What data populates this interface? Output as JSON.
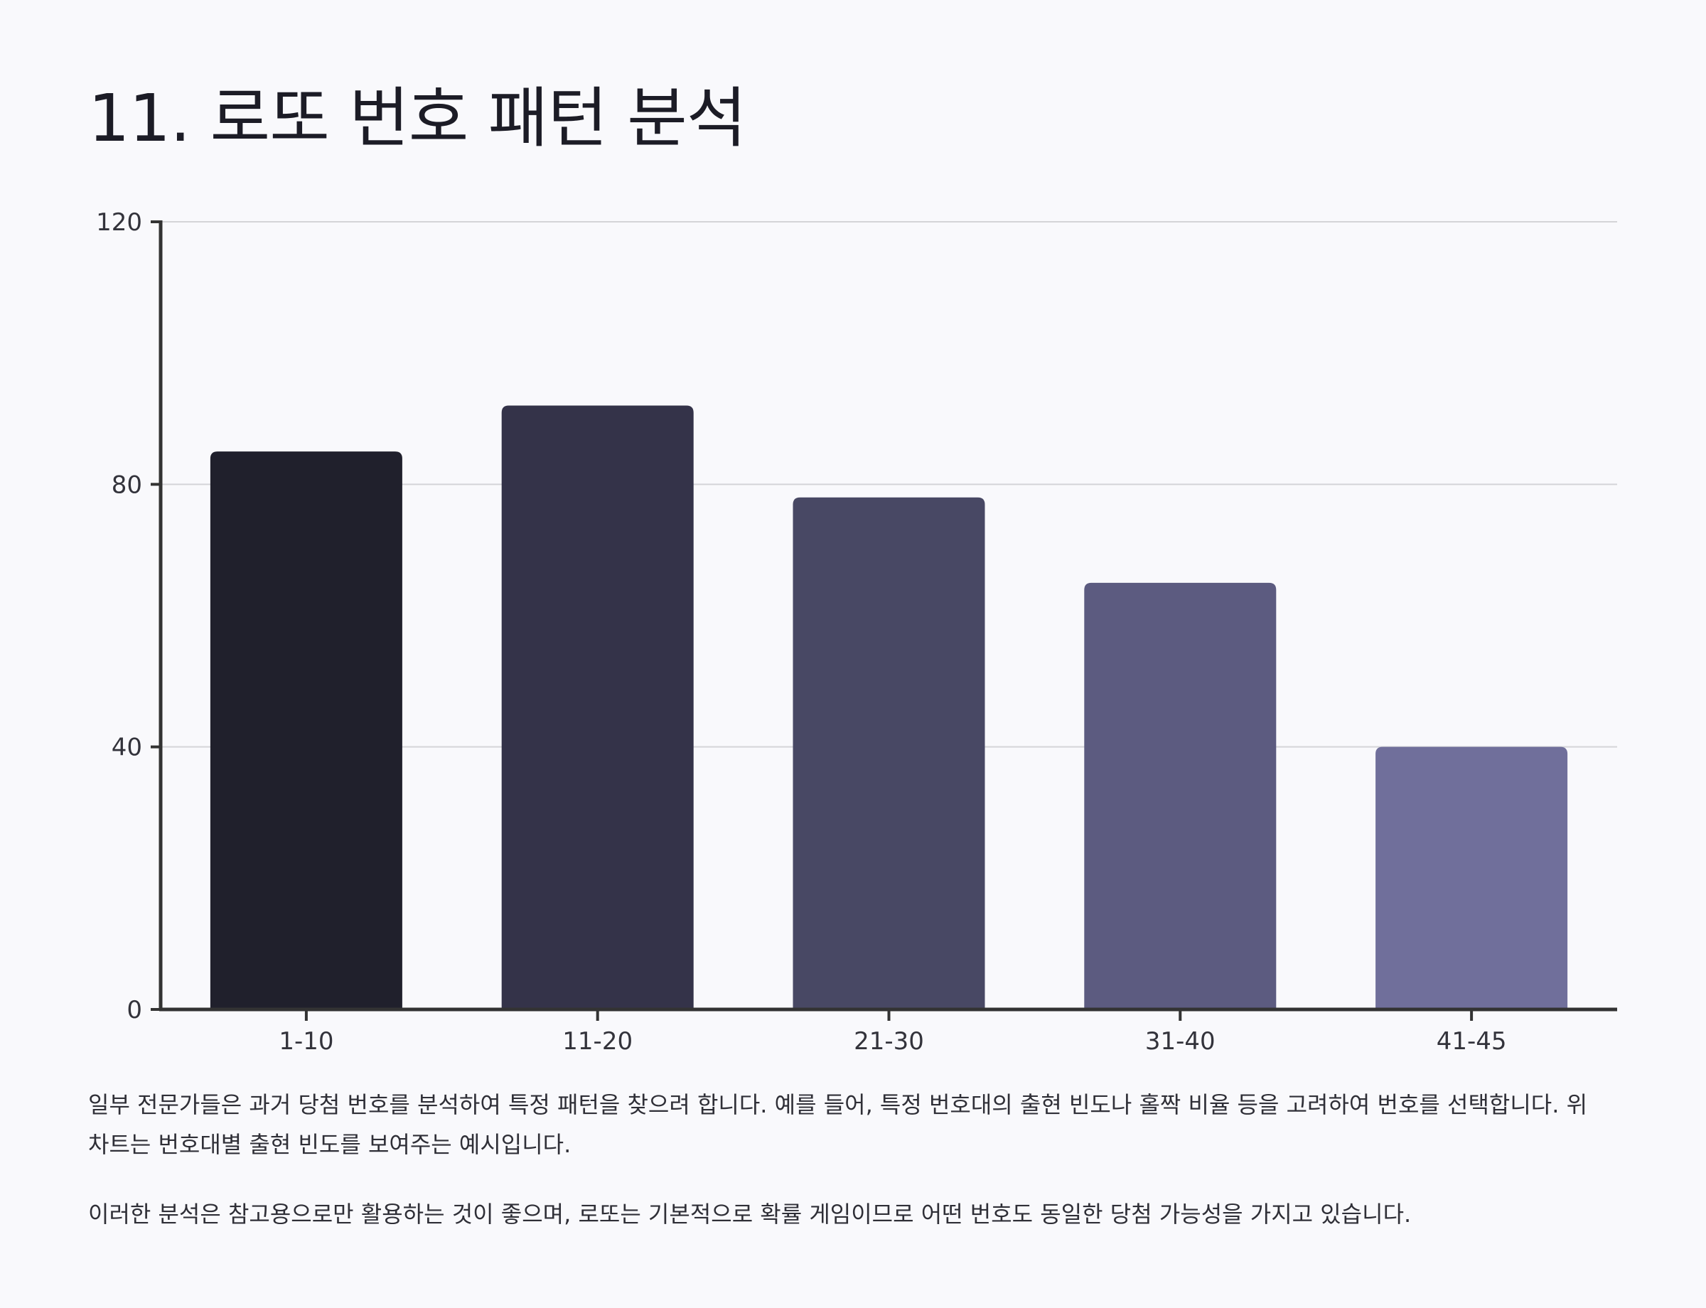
{
  "heading": "11. 로또 번호 패턴 분석",
  "chart_data": {
    "type": "bar",
    "title": "",
    "xlabel": "",
    "ylabel": "",
    "categories": [
      "1-10",
      "11-20",
      "21-30",
      "31-40",
      "41-45"
    ],
    "values": [
      85,
      92,
      78,
      65,
      40
    ],
    "ylim": [
      0,
      120
    ],
    "yticks": [
      0,
      40,
      80,
      120
    ],
    "grid": true,
    "legend": "none",
    "colors": [
      "#20202c",
      "#343349",
      "#484864",
      "#5c5b80",
      "#706f9b"
    ],
    "axis_color": "#333333",
    "grid_color": "#d4d4d8"
  },
  "paragraphs": [
    "일부 전문가들은 과거 당첨 번호를 분석하여 특정 패턴을 찾으려 합니다. 예를 들어, 특정 번호대의 출현 빈도나 홀짝 비율 등을 고려하여 번호를 선택합니다. 위 차트는 번호대별 출현 빈도를 보여주는 예시입니다.",
    "이러한 분석은 참고용으로만 활용하는 것이 좋으며, 로또는 기본적으로 확률 게임이므로 어떤 번호도 동일한 당첨 가능성을 가지고 있습니다."
  ]
}
